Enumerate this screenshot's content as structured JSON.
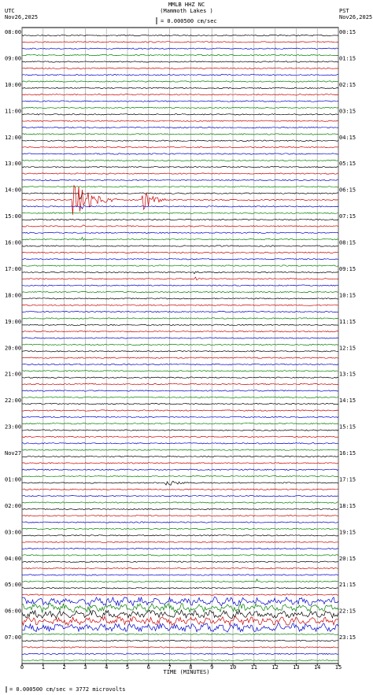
{
  "chart_data": {
    "type": "helicorder",
    "title": "MMLB HHZ NC",
    "subtitle": "(Mammoth Lakes )",
    "scale_note": "= 0.000500 cm/sec",
    "left_zone": "UTC",
    "left_date": "Nov26,2025",
    "right_zone": "PST",
    "right_date": "Nov26,2025",
    "xlabel": "TIME (MINUTES)",
    "footer": "= 0.000500 cm/sec =    3772 microvolts",
    "xlim": [
      0,
      15
    ],
    "xticks": [
      0,
      1,
      2,
      3,
      4,
      5,
      6,
      7,
      8,
      9,
      10,
      11,
      12,
      13,
      14,
      15
    ],
    "grid": true,
    "trace_colors": [
      "#000000",
      "#cc0000",
      "#0000cc",
      "#008000"
    ],
    "left_labels": [
      "08:00",
      "09:00",
      "10:00",
      "11:00",
      "12:00",
      "13:00",
      "14:00",
      "15:00",
      "16:00",
      "17:00",
      "18:00",
      "19:00",
      "20:00",
      "21:00",
      "22:00",
      "23:00",
      "Nov27",
      "01:00",
      "02:00",
      "03:00",
      "04:00",
      "05:00",
      "06:00",
      "07:00"
    ],
    "right_labels": [
      "00:15",
      "01:15",
      "02:15",
      "03:15",
      "04:15",
      "05:15",
      "06:15",
      "07:15",
      "08:15",
      "09:15",
      "10:15",
      "11:15",
      "12:15",
      "13:15",
      "14:15",
      "15:15",
      "16:15",
      "17:15",
      "18:15",
      "19:15",
      "20:15",
      "21:15",
      "22:15",
      "23:15"
    ]
  }
}
